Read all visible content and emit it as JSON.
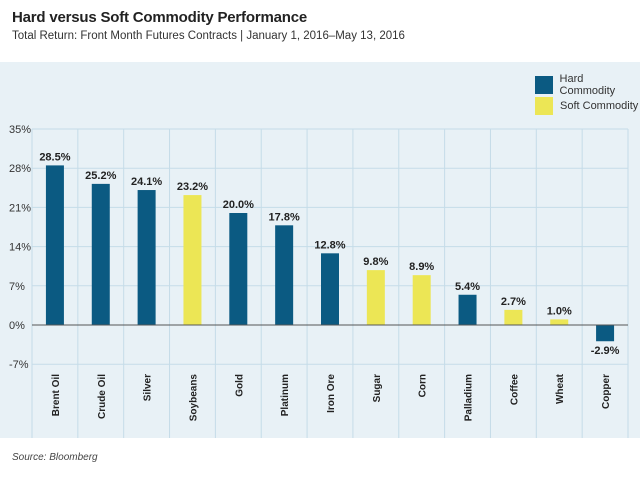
{
  "header": {
    "title": "Hard versus Soft Commodity Performance",
    "subtitle": "Total Return: Front Month Futures Contracts | January 1, 2016–May 13, 2016"
  },
  "source": "Source: Bloomberg",
  "legend": {
    "hard_label": "Hard Commodity",
    "soft_label": "Soft Commodity",
    "placement": "top-right"
  },
  "colors": {
    "hard": "#0b5a82",
    "soft": "#ece655",
    "panel_background": "#e8f1f6",
    "grid": "#c5dce8"
  },
  "chart_data": {
    "type": "bar",
    "title": "Hard versus Soft Commodity Performance",
    "subtitle": "Total Return: Front Month Futures Contracts | January 1, 2016–May 13, 2016",
    "categories": [
      "Brent Oil",
      "Crude Oil",
      "Silver",
      "Soybeans",
      "Gold",
      "Platinum",
      "Iron Ore",
      "Sugar",
      "Corn",
      "Palladium",
      "Coffee",
      "Wheat",
      "Copper"
    ],
    "values": [
      28.5,
      25.2,
      24.1,
      23.2,
      20.0,
      17.8,
      12.8,
      9.8,
      8.9,
      5.4,
      2.7,
      1.0,
      -2.9
    ],
    "data_labels": [
      "28.5%",
      "25.2%",
      "24.1%",
      "23.2%",
      "20.0%",
      "17.8%",
      "12.8%",
      "9.8%",
      "8.9%",
      "5.4%",
      "2.7%",
      "1.0%",
      "-2.9%"
    ],
    "groups": [
      "hard",
      "hard",
      "hard",
      "soft",
      "hard",
      "hard",
      "hard",
      "soft",
      "soft",
      "hard",
      "soft",
      "soft",
      "hard"
    ],
    "y_ticks": [
      35,
      28,
      21,
      14,
      7,
      0,
      -7
    ],
    "y_tick_labels": [
      "35%",
      "28%",
      "21%",
      "14%",
      "7%",
      "0%",
      "-7%"
    ],
    "ylim": [
      -7,
      35
    ],
    "xlabel": "",
    "ylabel": "",
    "grid": true
  }
}
